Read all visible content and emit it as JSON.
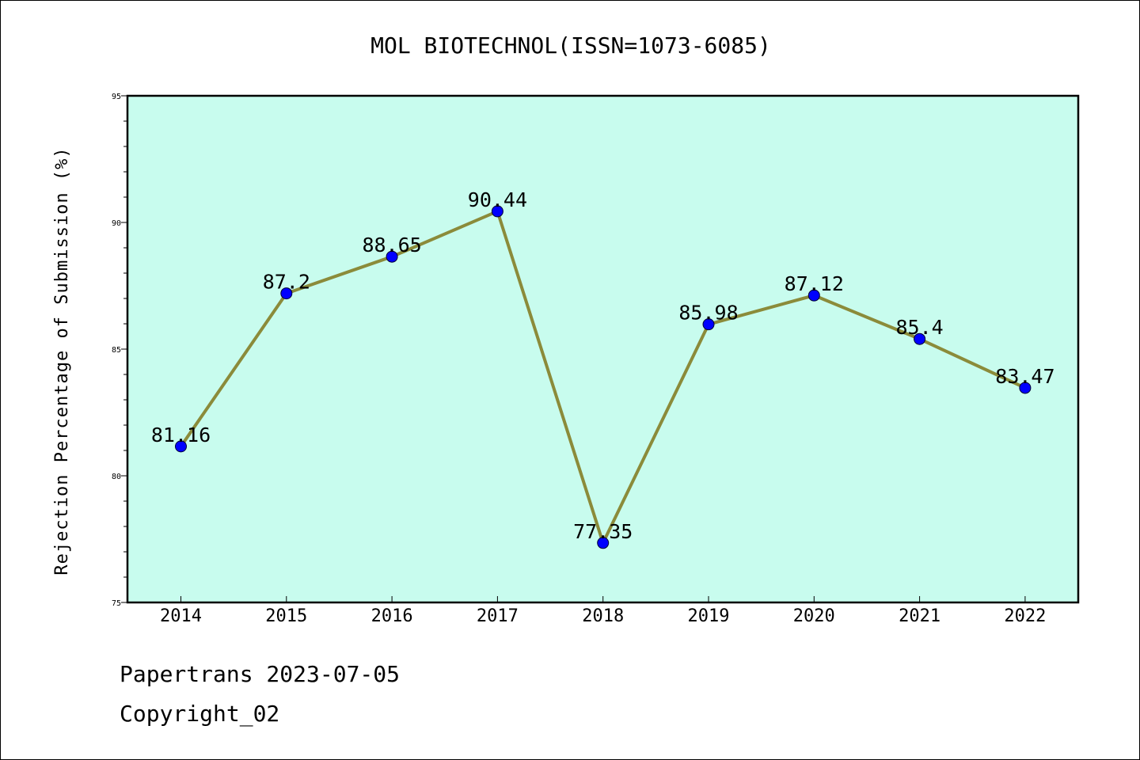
{
  "chart_data": {
    "type": "line",
    "title": "MOL BIOTECHNOL(ISSN=1073-6085)",
    "xlabel": "",
    "ylabel": "Rejection Percentage of Submission (%)",
    "categories": [
      "2014",
      "2015",
      "2016",
      "2017",
      "2018",
      "2019",
      "2020",
      "2021",
      "2022"
    ],
    "values": [
      81.16,
      87.2,
      88.65,
      90.44,
      77.35,
      85.98,
      87.12,
      85.4,
      83.47
    ],
    "data_labels": [
      "81.16",
      "87.2",
      "88.65",
      "90.44",
      "77.35",
      "85.98",
      "87.12",
      "85.4",
      "83.47"
    ],
    "ylim": [
      75,
      95
    ],
    "yticks": [
      75,
      80,
      85,
      90,
      95
    ],
    "ytick_labels": [
      "75",
      "80",
      "85",
      "90",
      "95"
    ],
    "grid": false,
    "plot_background": "#c8fcee",
    "line_color": "#8b8b3a",
    "marker_color": "#0000ff"
  },
  "footer": {
    "line1": "Papertrans 2023-07-05",
    "line2": "Copyright_02"
  }
}
